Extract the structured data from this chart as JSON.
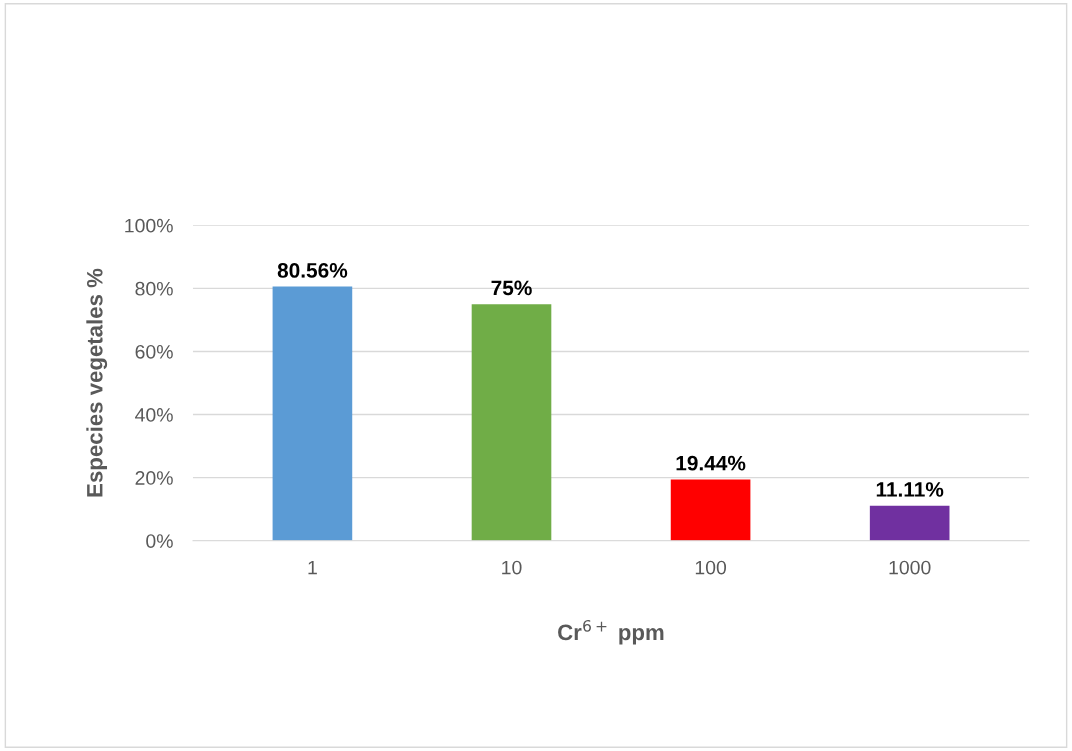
{
  "chart_data": {
    "type": "bar",
    "categories": [
      "1",
      "10",
      "100",
      "1000"
    ],
    "values": [
      80.56,
      75,
      19.44,
      11.11
    ],
    "colors": [
      "#5b9bd5",
      "#70ad47",
      "#ff0000",
      "#7030a0"
    ],
    "value_labels": [
      "80.56%",
      "75%",
      "19.44%",
      "11.11%"
    ],
    "xlabel": "Cr$^{6+}$ ppm",
    "ylabel": "Especies vegetales %",
    "ylim": [
      0,
      100
    ],
    "yticks": [
      {
        "value": 0,
        "label": "0%"
      },
      {
        "value": 20,
        "label": "20%"
      },
      {
        "value": 40,
        "label": "40%"
      },
      {
        "value": 60,
        "label": "60%"
      },
      {
        "value": 80,
        "label": "80%"
      },
      {
        "value": 100,
        "label": "100%"
      }
    ],
    "grid": "y"
  }
}
